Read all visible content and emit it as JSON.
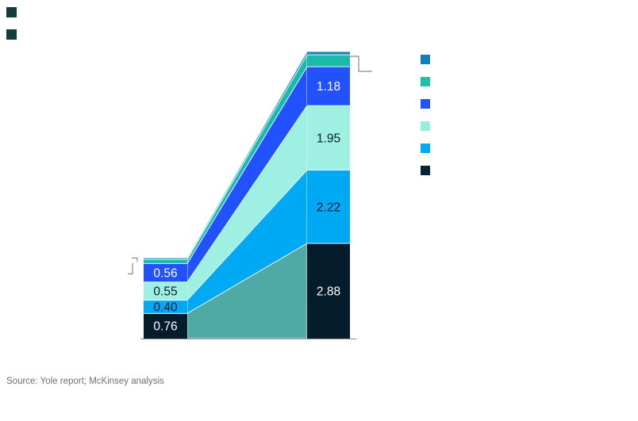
{
  "header": {
    "markers": [
      {
        "name": "marker-1",
        "color": "#113e38"
      },
      {
        "name": "marker-2",
        "color": "#113e38"
      }
    ]
  },
  "footer": {
    "source_note": "Source: Yole report; McKinsey analysis"
  },
  "colors": {
    "background": "#ffffff",
    "segment_separator": "#e9f4f7",
    "ribbon_outline": "#dceef3",
    "axis_line": "#8c8c8c",
    "bracket_line": "#8a8a8a",
    "source_text": "#6e6e6e"
  },
  "chart_data": {
    "type": "bar",
    "variant": "stacked-bars-with-ribbon-flow",
    "title": "",
    "xlabel": "",
    "ylabel": "",
    "categories": [
      "",
      ""
    ],
    "grid": false,
    "baseline_axis_visible": true,
    "series": [
      {
        "name": "ocean-blue-segment",
        "color": "#1580c1",
        "ribbon_color": "#1580c1",
        "values": [
          0.05,
          0.1
        ],
        "labels": [
          "",
          ""
        ],
        "label_color": "#ffffff"
      },
      {
        "name": "teal-segment",
        "color": "#18bba8",
        "ribbon_color": "#18bba8",
        "values": [
          0.12,
          0.36
        ],
        "labels": [
          "",
          ""
        ],
        "label_color": "#051c2c"
      },
      {
        "name": "royal-blue-segment",
        "color": "#2251ff",
        "ribbon_color": "#2251ff",
        "values": [
          0.56,
          1.18
        ],
        "labels": [
          "0.56",
          "1.18"
        ],
        "label_color": "#ffffff"
      },
      {
        "name": "mint-segment",
        "color": "#9ef0e2",
        "ribbon_color": "#9ef0e2",
        "values": [
          0.55,
          1.95
        ],
        "labels": [
          "0.55",
          "1.95"
        ],
        "label_color": "#051c2c"
      },
      {
        "name": "sky-blue-segment",
        "color": "#00a9f4",
        "ribbon_color": "#00a9f4",
        "values": [
          0.4,
          2.22
        ],
        "labels": [
          "0.40",
          "2.22"
        ],
        "label_color": "#051c2c"
      },
      {
        "name": "navy-segment",
        "color": "#051c2c",
        "ribbon_color": "#4faaa6",
        "values": [
          0.76,
          2.88
        ],
        "labels": [
          "0.76",
          "2.88"
        ],
        "label_color": "#ffffff"
      }
    ],
    "legend": {
      "position": "right",
      "entries": [
        {
          "label": "",
          "color": "#117ec0"
        },
        {
          "label": "",
          "color": "#1fc1a8"
        },
        {
          "label": "",
          "color": "#2251ff"
        },
        {
          "label": "",
          "color": "#8ff0dd"
        },
        {
          "label": "",
          "color": "#00a9f4"
        },
        {
          "label": "",
          "color": "#0a2334"
        }
      ]
    }
  }
}
